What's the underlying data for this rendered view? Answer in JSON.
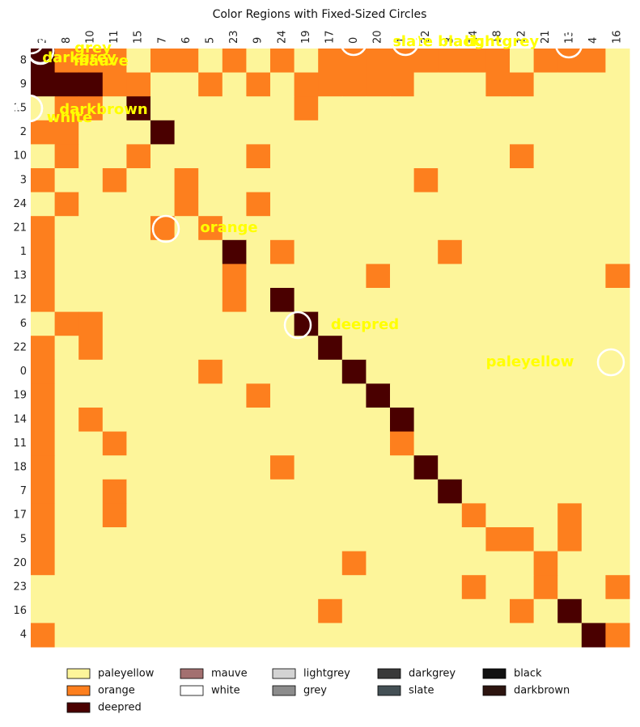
{
  "chart_data": {
    "type": "heatmap",
    "title": "Color Regions with Fixed-Sized Circles",
    "x_categories": [
      "2",
      "8",
      "10",
      "11",
      "15",
      "7",
      "6",
      "5",
      "23",
      "9",
      "24",
      "19",
      "17",
      "0",
      "20",
      "1",
      "22",
      "3",
      "14",
      "18",
      "12",
      "21",
      "13",
      "4",
      "16"
    ],
    "y_categories": [
      "8",
      "9",
      "15",
      "2",
      "10",
      "3",
      "24",
      "21",
      "1",
      "13",
      "12",
      "6",
      "22",
      "0",
      "19",
      "14",
      "11",
      "18",
      "7",
      "17",
      "5",
      "20",
      "23",
      "16",
      "4"
    ],
    "values": [
      [
        2,
        1,
        1,
        1,
        0,
        1,
        1,
        0,
        1,
        0,
        1,
        0,
        1,
        1,
        1,
        1,
        1,
        1,
        1,
        1,
        0,
        1,
        1,
        1,
        0
      ],
      [
        2,
        2,
        2,
        1,
        1,
        0,
        0,
        1,
        0,
        1,
        0,
        1,
        1,
        1,
        1,
        1,
        0,
        0,
        0,
        1,
        1,
        0,
        0,
        0,
        0
      ],
      [
        0,
        1,
        1,
        0,
        2,
        0,
        0,
        0,
        0,
        0,
        0,
        1,
        0,
        0,
        0,
        0,
        0,
        0,
        0,
        0,
        0,
        0,
        0,
        0,
        0
      ],
      [
        1,
        1,
        0,
        0,
        0,
        2,
        0,
        0,
        0,
        0,
        0,
        0,
        0,
        0,
        0,
        0,
        0,
        0,
        0,
        0,
        0,
        0,
        0,
        0,
        0
      ],
      [
        0,
        1,
        0,
        0,
        1,
        0,
        0,
        0,
        0,
        1,
        0,
        0,
        0,
        0,
        0,
        0,
        0,
        0,
        0,
        0,
        1,
        0,
        0,
        0,
        0
      ],
      [
        1,
        0,
        0,
        1,
        0,
        0,
        1,
        0,
        0,
        0,
        0,
        0,
        0,
        0,
        0,
        0,
        1,
        0,
        0,
        0,
        0,
        0,
        0,
        0,
        0
      ],
      [
        0,
        1,
        0,
        0,
        0,
        0,
        1,
        0,
        0,
        1,
        0,
        0,
        0,
        0,
        0,
        0,
        0,
        0,
        0,
        0,
        0,
        0,
        0,
        0,
        0
      ],
      [
        1,
        0,
        0,
        0,
        0,
        1,
        0,
        1,
        0,
        0,
        0,
        0,
        0,
        0,
        0,
        0,
        0,
        0,
        0,
        0,
        0,
        0,
        0,
        0,
        0
      ],
      [
        1,
        0,
        0,
        0,
        0,
        0,
        0,
        0,
        2,
        0,
        1,
        0,
        0,
        0,
        0,
        0,
        0,
        1,
        0,
        0,
        0,
        0,
        0,
        0,
        0
      ],
      [
        1,
        0,
        0,
        0,
        0,
        0,
        0,
        0,
        1,
        0,
        0,
        0,
        0,
        0,
        1,
        0,
        0,
        0,
        0,
        0,
        0,
        0,
        0,
        0,
        1
      ],
      [
        1,
        0,
        0,
        0,
        0,
        0,
        0,
        0,
        1,
        0,
        2,
        0,
        0,
        0,
        0,
        0,
        0,
        0,
        0,
        0,
        0,
        0,
        0,
        0,
        0
      ],
      [
        0,
        1,
        1,
        0,
        0,
        0,
        0,
        0,
        0,
        0,
        0,
        2,
        0,
        0,
        0,
        0,
        0,
        0,
        0,
        0,
        0,
        0,
        0,
        0,
        0
      ],
      [
        1,
        0,
        1,
        0,
        0,
        0,
        0,
        0,
        0,
        0,
        0,
        0,
        2,
        0,
        0,
        0,
        0,
        0,
        0,
        0,
        0,
        0,
        0,
        0,
        0
      ],
      [
        1,
        0,
        0,
        0,
        0,
        0,
        0,
        1,
        0,
        0,
        0,
        0,
        0,
        2,
        0,
        0,
        0,
        0,
        0,
        0,
        0,
        0,
        0,
        0,
        0
      ],
      [
        1,
        0,
        0,
        0,
        0,
        0,
        0,
        0,
        0,
        1,
        0,
        0,
        0,
        0,
        2,
        0,
        0,
        0,
        0,
        0,
        0,
        0,
        0,
        0,
        0
      ],
      [
        1,
        0,
        1,
        0,
        0,
        0,
        0,
        0,
        0,
        0,
        0,
        0,
        0,
        0,
        0,
        2,
        0,
        0,
        0,
        0,
        0,
        0,
        0,
        0,
        0
      ],
      [
        1,
        0,
        0,
        1,
        0,
        0,
        0,
        0,
        0,
        0,
        0,
        0,
        0,
        0,
        0,
        1,
        0,
        0,
        0,
        0,
        0,
        0,
        0,
        0,
        0
      ],
      [
        1,
        0,
        0,
        0,
        0,
        0,
        0,
        0,
        0,
        0,
        1,
        0,
        0,
        0,
        0,
        0,
        2,
        0,
        0,
        0,
        0,
        0,
        0,
        0,
        0
      ],
      [
        1,
        0,
        0,
        1,
        0,
        0,
        0,
        0,
        0,
        0,
        0,
        0,
        0,
        0,
        0,
        0,
        0,
        2,
        0,
        0,
        0,
        0,
        0,
        0,
        0
      ],
      [
        1,
        0,
        0,
        1,
        0,
        0,
        0,
        0,
        0,
        0,
        0,
        0,
        0,
        0,
        0,
        0,
        0,
        0,
        1,
        0,
        0,
        0,
        1,
        0,
        0
      ],
      [
        1,
        0,
        0,
        0,
        0,
        0,
        0,
        0,
        0,
        0,
        0,
        0,
        0,
        0,
        0,
        0,
        0,
        0,
        0,
        1,
        1,
        0,
        1,
        0,
        0
      ],
      [
        1,
        0,
        0,
        0,
        0,
        0,
        0,
        0,
        0,
        0,
        0,
        0,
        0,
        1,
        0,
        0,
        0,
        0,
        0,
        0,
        0,
        1,
        0,
        0,
        0
      ],
      [
        0,
        0,
        0,
        0,
        0,
        0,
        0,
        0,
        0,
        0,
        0,
        0,
        0,
        0,
        0,
        0,
        0,
        0,
        1,
        0,
        0,
        1,
        0,
        0,
        1
      ],
      [
        0,
        0,
        0,
        0,
        0,
        0,
        0,
        0,
        0,
        0,
        0,
        0,
        1,
        0,
        0,
        0,
        0,
        0,
        0,
        0,
        1,
        0,
        2,
        0,
        0
      ],
      [
        1,
        0,
        0,
        0,
        0,
        0,
        0,
        0,
        0,
        0,
        0,
        0,
        0,
        0,
        0,
        0,
        0,
        0,
        0,
        0,
        0,
        0,
        0,
        2,
        1
      ]
    ],
    "legend": [
      {
        "name": "paleyellow",
        "color": "#fdf59a"
      },
      {
        "name": "orange",
        "color": "#fd7f1e"
      },
      {
        "name": "deepred",
        "color": "#4a0000"
      },
      {
        "name": "mauve",
        "color": "#a37070"
      },
      {
        "name": "white",
        "color": "#ffffff"
      },
      {
        "name": "lightgrey",
        "color": "#d3d3d3"
      },
      {
        "name": "grey",
        "color": "#8c8c8c"
      },
      {
        "name": "darkgrey",
        "color": "#3a3a3a"
      },
      {
        "name": "slate",
        "color": "#445055"
      },
      {
        "name": "black",
        "color": "#111111"
      },
      {
        "name": "darkbrown",
        "color": "#2d1510"
      }
    ],
    "annotations": [
      "paleyellow",
      "orange",
      "deepred",
      "mauve",
      "white",
      "lightgrey",
      "grey",
      "darkgrey",
      "slate",
      "black",
      "darkbrown"
    ]
  }
}
